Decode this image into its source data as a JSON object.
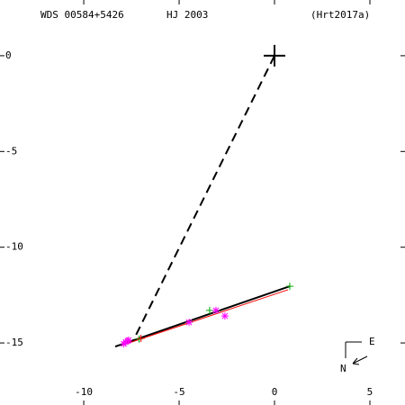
{
  "chart_data": {
    "type": "scatter",
    "texts": [
      "WDS 00584+5426",
      "HJ 2003",
      "(Hrt2017a)"
    ],
    "compass": [
      "E",
      "N"
    ],
    "xlim": [
      -14.39,
      6.84
    ],
    "ylim": [
      -18.24,
      2.91
    ],
    "xticks": [
      -10,
      -5,
      0,
      5
    ],
    "yticks": [
      0,
      -5,
      -10,
      -15
    ],
    "series": [
      {
        "color": "#000000",
        "line": "dashed",
        "x": [
          0,
          -7.4
        ],
        "values": [
          0,
          -14.86
        ]
      },
      {
        "color": "#000000",
        "line": "solid",
        "x": [
          -8.35,
          0.8
        ],
        "values": [
          -15.19,
          -12.04
        ]
      },
      {
        "color": "#ff0000",
        "line": "thin",
        "x": [
          -7.78,
          0.71
        ],
        "values": [
          -15.05,
          -12.22
        ]
      },
      {
        "color": "#00aa00",
        "marker": "plus",
        "x": [
          0.8,
          -3.4,
          -7.1
        ],
        "values": [
          -12.04,
          -13.3,
          -14.8
        ]
      },
      {
        "color": "#ff0000",
        "marker": "plus",
        "x": [
          -7.0
        ],
        "values": [
          -14.76
        ]
      },
      {
        "color": "#ff00ff",
        "marker": "star",
        "x": [
          -4.48,
          -3.07,
          -2.6,
          -7.8,
          -7.65,
          -7.9,
          -7.7
        ],
        "values": [
          -13.92,
          -13.3,
          -13.59,
          -14.95,
          -14.85,
          -15.05,
          -14.9
        ]
      },
      {
        "color": "#000000",
        "marker": "big-plus",
        "x": [
          0
        ],
        "values": [
          0
        ]
      }
    ]
  }
}
